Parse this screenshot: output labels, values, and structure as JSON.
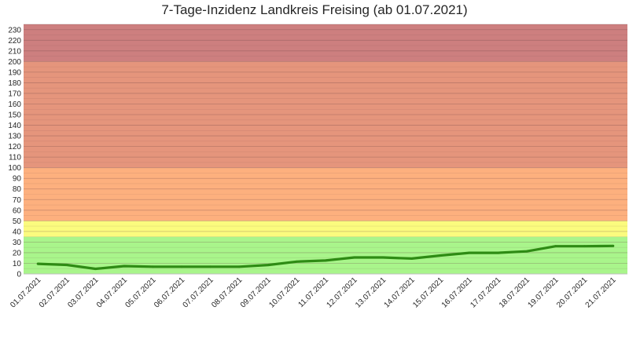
{
  "chart_data": {
    "type": "line",
    "title": "7-Tage-Inzidenz Landkreis Freising (ab 01.07.2021)",
    "xlabel": "",
    "ylabel": "",
    "ylim": [
      0,
      235
    ],
    "yticks": [
      0,
      10,
      20,
      30,
      40,
      50,
      60,
      70,
      80,
      90,
      100,
      110,
      120,
      130,
      140,
      150,
      160,
      170,
      180,
      190,
      200,
      210,
      220,
      230
    ],
    "categories": [
      "01.07.2021",
      "02.07.2021",
      "03.07.2021",
      "04.07.2021",
      "05.07.2021",
      "06.07.2021",
      "07.07.2021",
      "08.07.2021",
      "09.07.2021",
      "10.07.2021",
      "11.07.2021",
      "12.07.2021",
      "13.07.2021",
      "14.07.2021",
      "15.07.2021",
      "16.07.2021",
      "17.07.2021",
      "18.07.2021",
      "19.07.2021",
      "20.07.2021",
      "21.07.2021"
    ],
    "series": [
      {
        "color": "#2e8b14",
        "values": [
          9.5,
          8.5,
          4.8,
          7.4,
          6.8,
          6.8,
          6.8,
          6.8,
          8.4,
          11.6,
          12.6,
          15.5,
          15.5,
          14.5,
          17.4,
          19.9,
          19.9,
          21.3,
          26.1,
          26.1,
          26.4
        ]
      }
    ],
    "bands": [
      {
        "from": 0,
        "to": 35,
        "color": "#a9f58b"
      },
      {
        "from": 35,
        "to": 50,
        "color": "#fbfb7e"
      },
      {
        "from": 50,
        "to": 100,
        "color": "#fdb07e"
      },
      {
        "from": 100,
        "to": 200,
        "color": "#e5957c"
      },
      {
        "from": 200,
        "to": 235,
        "color": "#cd7f7f"
      }
    ],
    "grid": true,
    "legend": "none"
  }
}
